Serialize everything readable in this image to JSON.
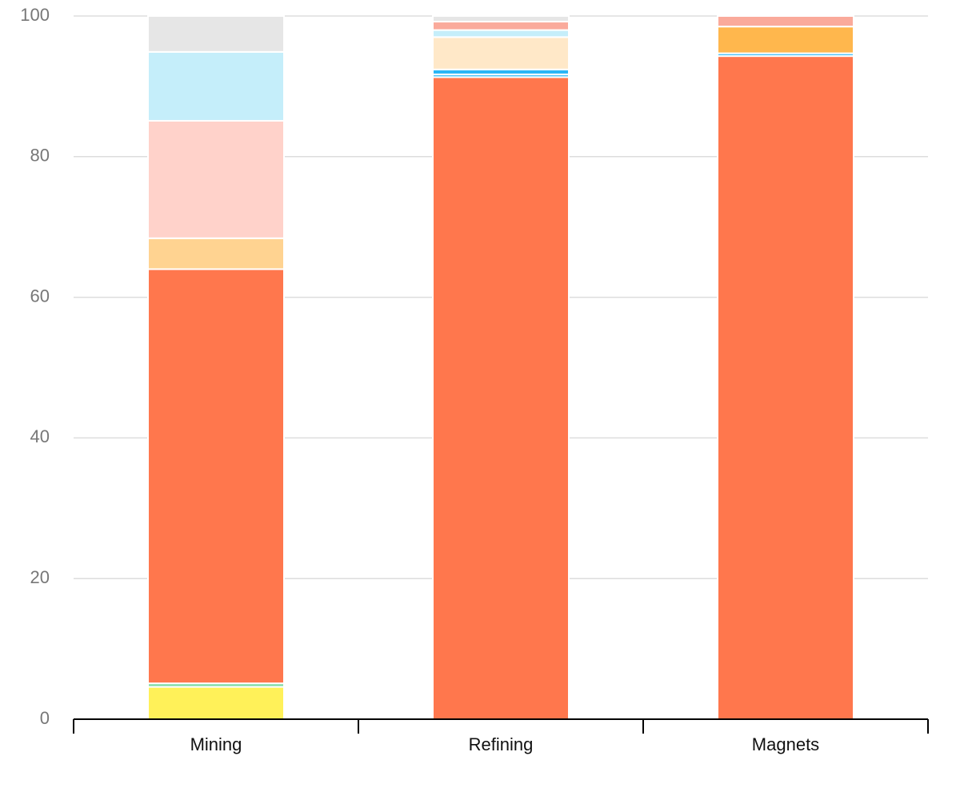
{
  "chart_data": {
    "type": "bar",
    "stacked": true,
    "categories": [
      "Mining",
      "Refining",
      "Magnets"
    ],
    "ylim": [
      0,
      100
    ],
    "yticks": [
      0,
      20,
      40,
      60,
      80,
      100
    ],
    "grid": true,
    "title": "",
    "xlabel": "",
    "ylabel": "",
    "series": [
      {
        "color": "#FFF159",
        "values": [
          4.6,
          0,
          0
        ]
      },
      {
        "color": "#7ED9A4",
        "values": [
          0.5,
          0,
          0
        ]
      },
      {
        "color": "#FF774D",
        "values": [
          58.9,
          91.3,
          94.3
        ]
      },
      {
        "color": "#4FC3F7",
        "values": [
          0,
          0.4,
          0.4
        ]
      },
      {
        "color": "#29B6F6",
        "values": [
          0,
          0.7,
          0
        ]
      },
      {
        "color": "#FFD391",
        "values": [
          4.4,
          0,
          0
        ]
      },
      {
        "color": "#FFB74D",
        "values": [
          0,
          0,
          3.8
        ]
      },
      {
        "color": "#FFE8C8",
        "values": [
          0,
          4.6,
          0
        ]
      },
      {
        "color": "#FFD2CA",
        "values": [
          16.7,
          0,
          0
        ]
      },
      {
        "color": "#C5EEFA",
        "values": [
          9.8,
          1.0,
          0
        ]
      },
      {
        "color": "#FAAA9B",
        "values": [
          0,
          1.2,
          1.5
        ]
      },
      {
        "color": "#E6E6E6",
        "values": [
          5.1,
          0.8,
          0
        ]
      }
    ]
  }
}
